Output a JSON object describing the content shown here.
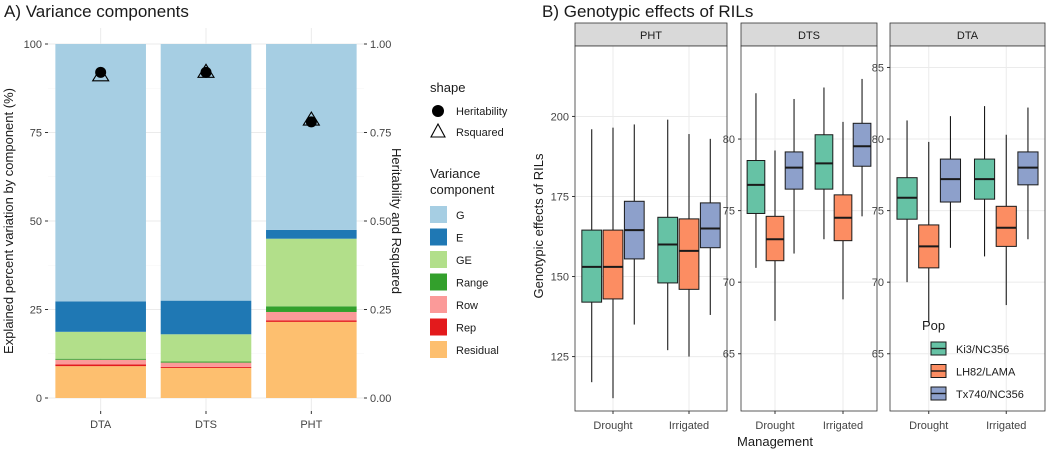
{
  "chart_data": [
    {
      "type": "bar",
      "title": "A) Variance components",
      "xlabel": "",
      "ylabel": "Explained percent variation by component (%)",
      "y2label": "Heritability and Rsquared",
      "ylim": [
        0,
        100
      ],
      "y2lim": [
        0,
        1
      ],
      "yticks": [
        "0",
        "25",
        "50",
        "75",
        "100"
      ],
      "y2ticks": [
        "0.00",
        "0.25",
        "0.50",
        "0.75",
        "1.00"
      ],
      "categories": [
        "DTA",
        "DTS",
        "PHT"
      ],
      "stacked": true,
      "series": [
        {
          "name": "Residual",
          "color": "#fdbf6f",
          "values": [
            9,
            8.5,
            21.5
          ]
        },
        {
          "name": "Rep",
          "color": "#e31a1c",
          "values": [
            0.5,
            0.3,
            0.4
          ]
        },
        {
          "name": "Row",
          "color": "#fb9a99",
          "values": [
            1.3,
            1.2,
            2.4
          ]
        },
        {
          "name": "Range",
          "color": "#33a02c",
          "values": [
            0.3,
            0.3,
            1.6
          ]
        },
        {
          "name": "GE",
          "color": "#b2df8a",
          "values": [
            7.6,
            7.7,
            19.1
          ]
        },
        {
          "name": "E",
          "color": "#1f78b4",
          "values": [
            8.6,
            9.5,
            2.5
          ]
        },
        {
          "name": "G",
          "color": "#a6cee3",
          "values": [
            72.7,
            72.5,
            52.5
          ]
        }
      ],
      "points": [
        {
          "name": "Heritability",
          "values": [
            0.92,
            0.92,
            0.78
          ]
        },
        {
          "name": "Rsquared",
          "values": [
            0.91,
            0.92,
            0.785
          ]
        }
      ],
      "legend_shape": {
        "title": "shape",
        "items": [
          "Heritability",
          "Rsquared"
        ]
      },
      "legend_fill": {
        "title_line1": "Variance",
        "title_line2": "component",
        "items": [
          "G",
          "E",
          "GE",
          "Range",
          "Row",
          "Rep",
          "Residual"
        ]
      }
    },
    {
      "type": "box",
      "title": "B) Genotypic effects of RILs",
      "xlabel": "Management",
      "ylabel": "Genotypic effects of RILs",
      "categories": [
        "Drought",
        "Irrigated"
      ],
      "groups": [
        "Ki3/NC356",
        "LH82/LAMA",
        "Tx740/NC356"
      ],
      "group_colors": [
        "#66c2a5",
        "#fc8d62",
        "#8da0cb"
      ],
      "legend_title": "Pop",
      "panels": [
        {
          "name": "PHT",
          "ylim": [
            108,
            222
          ],
          "yticks": [
            125,
            150,
            175,
            200
          ],
          "boxes": [
            [
              [
                117,
                142,
                153,
                164.5,
                196
              ],
              [
                112,
                143,
                153,
                164.5,
                196.5
              ],
              [
                135,
                155.5,
                164.5,
                173.5,
                197.5
              ]
            ],
            [
              [
                127,
                148,
                160,
                168.5,
                199
              ],
              [
                125,
                146,
                158,
                168,
                194.5
              ],
              [
                138,
                159,
                165,
                173,
                193
              ]
            ]
          ]
        },
        {
          "name": "DTS",
          "ylim": [
            61,
            86.5
          ],
          "yticks": [
            65,
            70,
            75,
            80
          ],
          "boxes": [
            [
              [
                71,
                74.8,
                76.8,
                78.5,
                83.2
              ],
              [
                67.3,
                71.5,
                73,
                74.6,
                79.2
              ],
              [
                72,
                76.5,
                78,
                79.1,
                82.8
              ]
            ],
            [
              [
                73,
                76.5,
                78.3,
                80.3,
                83.6
              ],
              [
                68.8,
                72.9,
                74.5,
                76.1,
                81.2
              ],
              [
                74.6,
                78.1,
                79.5,
                81.1,
                84.2
              ]
            ]
          ]
        },
        {
          "name": "DTA",
          "ylim": [
            61,
            86.5
          ],
          "yticks": [
            65,
            70,
            75,
            80,
            85
          ],
          "boxes": [
            [
              [
                70,
                74.4,
                75.9,
                77.3,
                81.3
              ],
              [
                67.2,
                71,
                72.5,
                74,
                79.8
              ],
              [
                72.4,
                75.6,
                77.2,
                78.6,
                81.6
              ]
            ],
            [
              [
                71.8,
                75.8,
                77.2,
                78.6,
                82.3
              ],
              [
                68.4,
                72.5,
                73.8,
                75.3,
                80.3
              ],
              [
                73,
                76.8,
                78,
                79.1,
                82.2
              ]
            ]
          ]
        }
      ]
    }
  ]
}
